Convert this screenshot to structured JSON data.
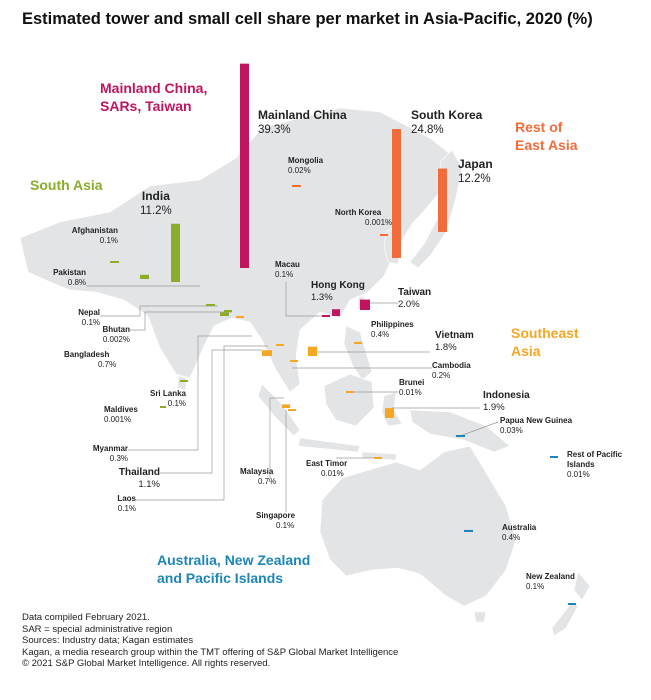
{
  "title": "Estimated tower and small cell share per market in Asia-Pacific, 2020 (%)",
  "colors": {
    "china": "#c0145f",
    "east_asia": "#f26b3a",
    "south_asia": "#8aac2a",
    "southeast_asia": "#f5a623",
    "oceania": "#1d86b9",
    "land": "#e2e4e6",
    "leader": "#9a9a9a"
  },
  "regions": {
    "china": [
      "Mainland China,",
      "SARs, Taiwan"
    ],
    "east_asia": [
      "Rest of",
      "East Asia"
    ],
    "south_asia": [
      "South Asia"
    ],
    "southeast_asia": [
      "Southeast",
      "Asia"
    ],
    "oceania": [
      "Australia, New Zealand",
      "and Pacific Islands"
    ]
  },
  "chart_data": {
    "type": "bar",
    "title": "Estimated tower and small cell share per market in Asia-Pacific, 2020 (%)",
    "unit": "%",
    "markets": [
      {
        "name": "Mainland China",
        "value": 39.3,
        "label": "39.3%",
        "region": "china"
      },
      {
        "name": "South Korea",
        "value": 24.8,
        "label": "24.8%",
        "region": "east_asia"
      },
      {
        "name": "Japan",
        "value": 12.2,
        "label": "12.2%",
        "region": "east_asia"
      },
      {
        "name": "India",
        "value": 11.2,
        "label": "11.2%",
        "region": "south_asia"
      },
      {
        "name": "Taiwan",
        "value": 2.0,
        "label": "2.0%",
        "region": "china"
      },
      {
        "name": "Indonesia",
        "value": 1.9,
        "label": "1.9%",
        "region": "southeast_asia"
      },
      {
        "name": "Vietnam",
        "value": 1.8,
        "label": "1.8%",
        "region": "southeast_asia"
      },
      {
        "name": "Hong Kong",
        "value": 1.3,
        "label": "1.3%",
        "region": "china"
      },
      {
        "name": "Thailand",
        "value": 1.1,
        "label": "1.1%",
        "region": "southeast_asia"
      },
      {
        "name": "Pakistan",
        "value": 0.8,
        "label": "0.8%",
        "region": "south_asia"
      },
      {
        "name": "Bangladesh",
        "value": 0.7,
        "label": "0.7%",
        "region": "south_asia"
      },
      {
        "name": "Malaysia",
        "value": 0.7,
        "label": "0.7%",
        "region": "southeast_asia"
      },
      {
        "name": "Philippines",
        "value": 0.4,
        "label": "0.4%",
        "region": "southeast_asia"
      },
      {
        "name": "Australia",
        "value": 0.4,
        "label": "0.4%",
        "region": "oceania"
      },
      {
        "name": "Myanmar",
        "value": 0.3,
        "label": "0.3%",
        "region": "southeast_asia"
      },
      {
        "name": "Cambodia",
        "value": 0.2,
        "label": "0.2%",
        "region": "southeast_asia"
      },
      {
        "name": "Afghanistan",
        "value": 0.1,
        "label": "0.1%",
        "region": "south_asia"
      },
      {
        "name": "Nepal",
        "value": 0.1,
        "label": "0.1%",
        "region": "south_asia"
      },
      {
        "name": "Sri Lanka",
        "value": 0.1,
        "label": "0.1%",
        "region": "south_asia"
      },
      {
        "name": "Macau",
        "value": 0.1,
        "label": "0.1%",
        "region": "china"
      },
      {
        "name": "Laos",
        "value": 0.1,
        "label": "0.1%",
        "region": "southeast_asia"
      },
      {
        "name": "Singapore",
        "value": 0.1,
        "label": "0.1%",
        "region": "southeast_asia"
      },
      {
        "name": "New Zealand",
        "value": 0.1,
        "label": "0.1%",
        "region": "oceania"
      },
      {
        "name": "Papua New Guinea",
        "value": 0.03,
        "label": "0.03%",
        "region": "oceania"
      },
      {
        "name": "Mongolia",
        "value": 0.02,
        "label": "0.02%",
        "region": "east_asia"
      },
      {
        "name": "Brunei",
        "value": 0.01,
        "label": "0.01%",
        "region": "southeast_asia"
      },
      {
        "name": "East Timor",
        "value": 0.01,
        "label": "0.01%",
        "region": "southeast_asia"
      },
      {
        "name": "Rest of Pacific Islands",
        "value": 0.01,
        "label": "0.01%",
        "region": "oceania"
      },
      {
        "name": "Bhutan",
        "value": 0.002,
        "label": "0.002%",
        "region": "south_asia"
      },
      {
        "name": "North Korea",
        "value": 0.001,
        "label": "0.001%",
        "region": "east_asia"
      },
      {
        "name": "Maldives",
        "value": 0.001,
        "label": "0.001%",
        "region": "south_asia"
      }
    ]
  },
  "notes": [
    "Data compiled February 2021.",
    "SAR = special administrative region",
    "Sources: Industry data; Kagan estimates",
    "Kagan, a media research group within the TMT offering of S&P Global Market Intelligence",
    "© 2021 S&P Global Market Intelligence. All rights reserved."
  ]
}
